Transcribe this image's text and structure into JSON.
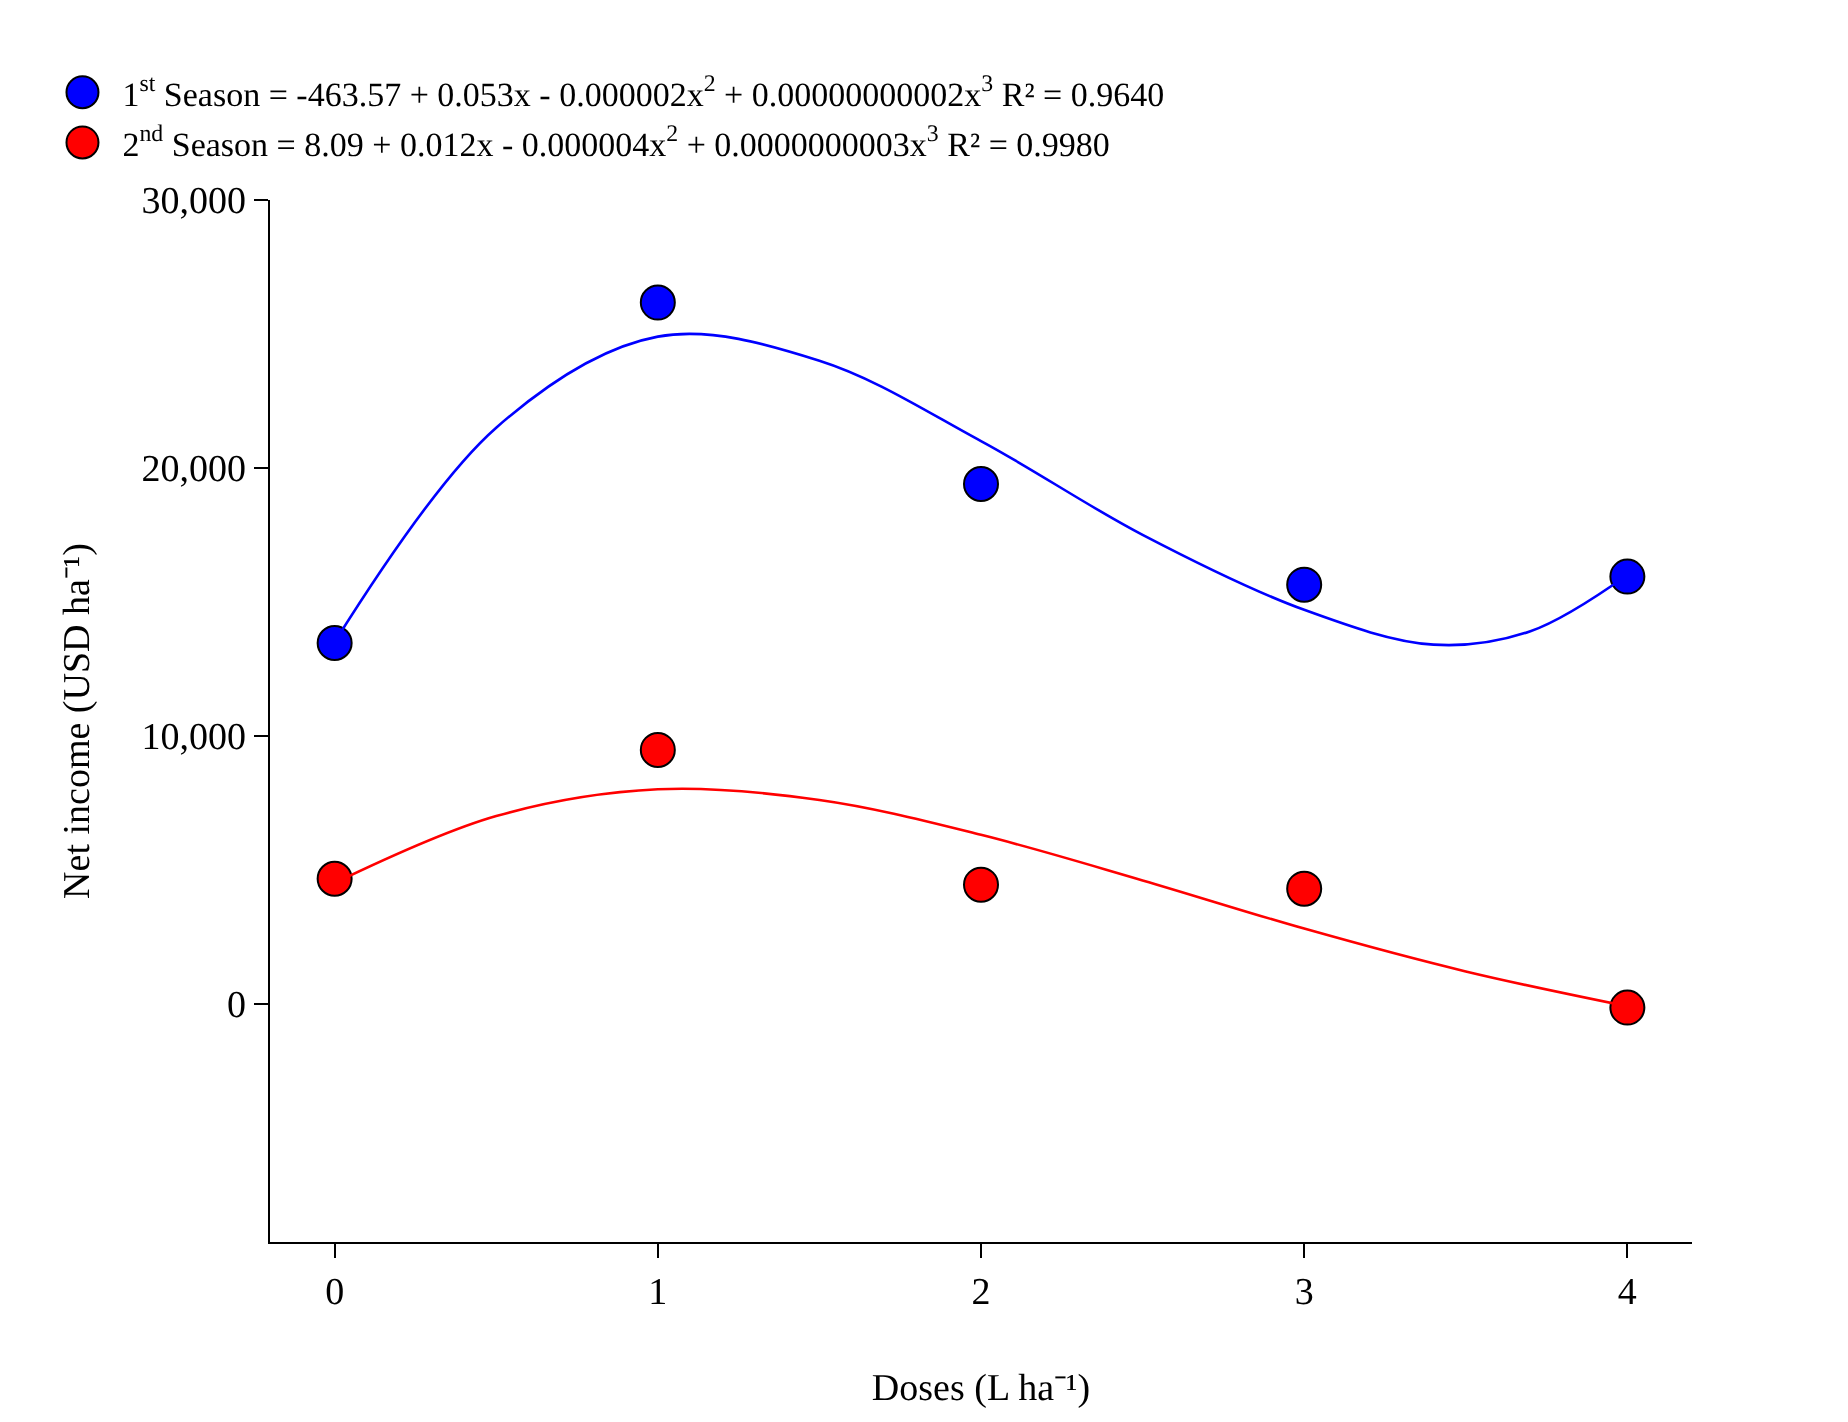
{
  "chart_data": {
    "type": "scatter",
    "xlabel": "Doses (L ha⁻¹)",
    "ylabel": "Net income (USD ha⁻¹)",
    "xlim": [
      -0.2,
      4.2
    ],
    "xticks": [
      0,
      1,
      2,
      3,
      4
    ],
    "ylim": [
      -8900,
      30000
    ],
    "yticks": [
      {
        "value": 0,
        "label": "0"
      },
      {
        "value": 10000,
        "label": "10,000"
      },
      {
        "value": 20000,
        "label": "20,000"
      },
      {
        "value": 30000,
        "label": "30,000"
      }
    ],
    "legend": "top",
    "series": [
      {
        "name": "1$^{st}$ Season = -463.57 + 0.053x - 0.000002x$^{2}$ + 0.00000000002x$^{3}$ R² = 0.9640",
        "marker": "circle",
        "color": "#0000ff",
        "x": [
          0,
          1,
          2,
          3,
          4
        ],
        "values": [
          13460,
          26170,
          19400,
          15640,
          15940
        ]
      },
      {
        "name": "2$^{nd}$ Season = 8.09 + 0.012x - 0.000004x$^{2}$ + 0.0000000003x$^{3}$ R² = 0.9980",
        "marker": "circle",
        "color": "#ff0000",
        "x": [
          0,
          1,
          2,
          3,
          4
        ],
        "values": [
          4660,
          9470,
          4440,
          4290,
          -150
        ]
      },
      {
        "type": "line",
        "color": "#0000ff",
        "x": [
          0,
          0.5,
          1,
          1.5,
          2,
          2.5,
          3,
          3.4,
          3.7,
          4
        ],
        "values": [
          13500,
          21500,
          24900,
          24000,
          21000,
          17500,
          14700,
          13400,
          13900,
          16000
        ]
      },
      {
        "type": "line",
        "color": "#ff0000",
        "x": [
          0,
          0.5,
          1,
          1.5,
          2,
          2.5,
          3,
          3.5,
          4
        ],
        "values": [
          4500,
          7000,
          8000,
          7600,
          6300,
          4600,
          2800,
          1200,
          -100
        ]
      }
    ]
  }
}
